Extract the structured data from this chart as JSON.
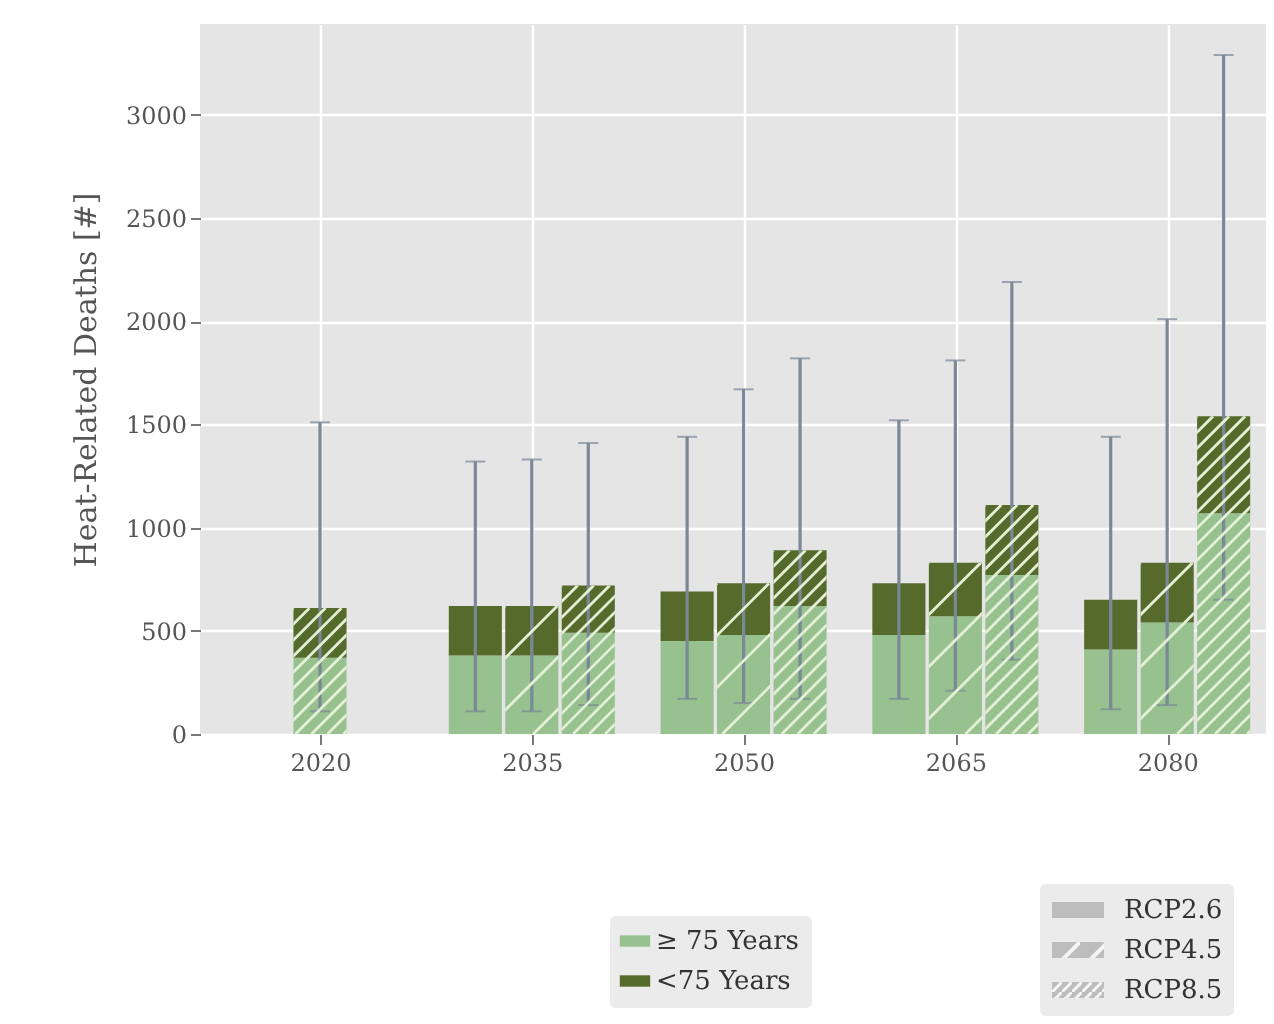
{
  "chart_data": {
    "type": "bar",
    "stacked": true,
    "ylabel": "Heat-Related Deaths [#]",
    "x": [
      2020,
      2031,
      2035,
      2039,
      2046,
      2050,
      2054,
      2061,
      2065,
      2069,
      2076,
      2080,
      2084
    ],
    "series": [
      {
        "name": "≥ 75 Years",
        "color": "#97c18e",
        "values": [
          370,
          380,
          380,
          490,
          450,
          480,
          620,
          480,
          570,
          770,
          410,
          540,
          1070
        ]
      },
      {
        "name": "<75 Years",
        "color": "#566b2b",
        "values": [
          240,
          240,
          240,
          230,
          240,
          250,
          270,
          250,
          260,
          340,
          240,
          290,
          470
        ],
        "errors": [
          [
            110,
            1510
          ],
          [
            110,
            1320
          ],
          [
            110,
            1330
          ],
          [
            140,
            1410
          ],
          [
            170,
            1440
          ],
          [
            150,
            1670
          ],
          [
            170,
            1820
          ],
          [
            170,
            1520
          ],
          [
            210,
            1810
          ],
          [
            360,
            2190
          ],
          [
            120,
            1440
          ],
          [
            140,
            2010
          ],
          [
            650,
            3290
          ]
        ]
      }
    ],
    "xlim": [
      2011.5,
      2087
    ],
    "xticks": [
      2020,
      2035,
      2050,
      2065,
      2080
    ],
    "ylim": [
      0,
      3440
    ],
    "yticks": [
      0,
      500,
      1000,
      1500,
      2000,
      2500,
      3000
    ],
    "grid": true,
    "legend": "bottom",
    "annotations": [
      "RCP2.6",
      "RCP4.5",
      "RCP8.5"
    ]
  }
}
